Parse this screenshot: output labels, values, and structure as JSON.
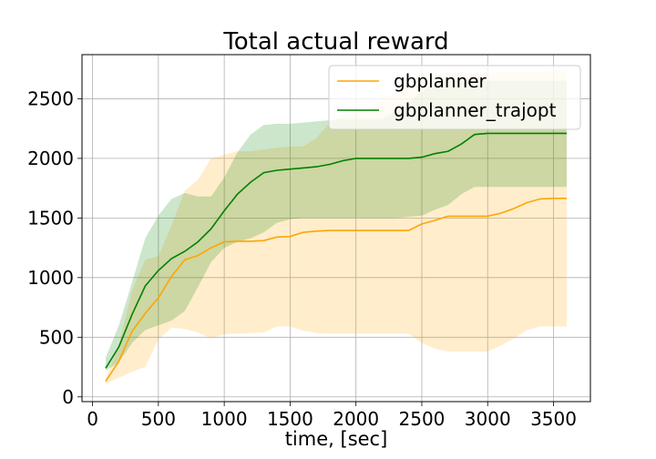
{
  "chart_data": {
    "type": "line",
    "title": "Total actual reward",
    "xlabel": "time, [sec]",
    "ylabel": "",
    "xlim": [
      -80,
      3780
    ],
    "ylim": [
      -40,
      2870
    ],
    "xticks": [
      0,
      500,
      1000,
      1500,
      2000,
      2500,
      3000,
      3500
    ],
    "yticks": [
      0,
      500,
      1000,
      1500,
      2000,
      2500
    ],
    "grid": true,
    "legend_position": "upper-right",
    "x": [
      100,
      200,
      300,
      400,
      500,
      600,
      700,
      800,
      900,
      1000,
      1100,
      1200,
      1300,
      1400,
      1500,
      1600,
      1700,
      1800,
      1900,
      2000,
      2100,
      2200,
      2300,
      2400,
      2500,
      2600,
      2700,
      2800,
      2900,
      3000,
      3100,
      3200,
      3300,
      3400,
      3500,
      3600
    ],
    "series": [
      {
        "name": "gbplanner",
        "color": "#ffa500",
        "mean": [
          130,
          300,
          550,
          700,
          830,
          1010,
          1150,
          1185,
          1250,
          1300,
          1305,
          1305,
          1310,
          1340,
          1345,
          1380,
          1390,
          1395,
          1395,
          1395,
          1395,
          1395,
          1395,
          1395,
          1450,
          1480,
          1515,
          1515,
          1515,
          1515,
          1540,
          1580,
          1630,
          1660,
          1665,
          1665
        ],
        "lower": [
          110,
          160,
          210,
          250,
          480,
          580,
          570,
          540,
          490,
          525,
          530,
          535,
          540,
          590,
          590,
          555,
          535,
          530,
          530,
          530,
          530,
          530,
          530,
          530,
          450,
          405,
          380,
          380,
          380,
          380,
          430,
          490,
          560,
          590,
          590,
          590
        ],
        "upper": [
          150,
          440,
          890,
          1150,
          1180,
          1440,
          1730,
          1820,
          2000,
          2030,
          2060,
          2060,
          2075,
          2090,
          2100,
          2100,
          2170,
          2300,
          2370,
          2390,
          2400,
          2500,
          2550,
          2640,
          2700,
          2710,
          2720,
          2720,
          2720,
          2720,
          2720,
          2720,
          2720,
          2720,
          2740,
          2740
        ]
      },
      {
        "name": "gbplanner_trajopt",
        "color": "#008000",
        "mean": [
          240,
          420,
          690,
          930,
          1060,
          1160,
          1220,
          1300,
          1410,
          1560,
          1700,
          1800,
          1880,
          1900,
          1910,
          1920,
          1930,
          1950,
          1980,
          2000,
          2000,
          2000,
          2000,
          2000,
          2010,
          2040,
          2060,
          2120,
          2200,
          2210,
          2210,
          2210,
          2210,
          2210,
          2210,
          2210
        ],
        "lower": [
          220,
          290,
          450,
          560,
          600,
          640,
          720,
          920,
          1130,
          1250,
          1300,
          1330,
          1380,
          1460,
          1490,
          1500,
          1500,
          1500,
          1500,
          1500,
          1500,
          1500,
          1500,
          1510,
          1520,
          1570,
          1610,
          1700,
          1760,
          1760,
          1760,
          1760,
          1760,
          1760,
          1760,
          1760
        ],
        "upper": [
          330,
          600,
          960,
          1330,
          1520,
          1660,
          1710,
          1680,
          1680,
          1840,
          2050,
          2200,
          2280,
          2290,
          2290,
          2300,
          2310,
          2320,
          2330,
          2330,
          2330,
          2330,
          2390,
          2470,
          2560,
          2640,
          2650,
          2650,
          2650,
          2650,
          2650,
          2650,
          2650,
          2650,
          2650,
          2650
        ]
      }
    ]
  }
}
